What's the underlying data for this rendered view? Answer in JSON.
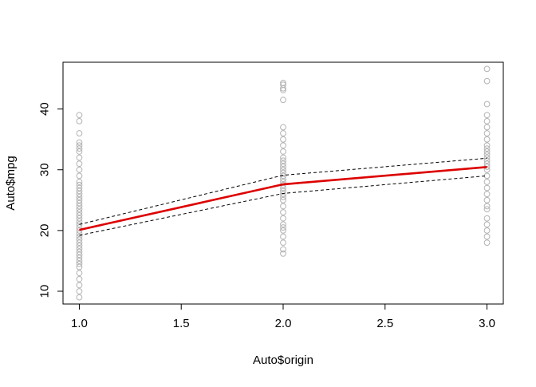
{
  "chart_data": {
    "type": "scatter",
    "title": "",
    "xlabel": "Auto$origin",
    "ylabel": "Auto$mpg",
    "xlim": [
      0.92,
      3.08
    ],
    "ylim": [
      7.9,
      47.7
    ],
    "x_ticks": [
      1.0,
      1.5,
      2.0,
      2.5,
      3.0
    ],
    "x_tick_labels": [
      "1.0",
      "1.5",
      "2.0",
      "2.5",
      "3.0"
    ],
    "y_ticks": [
      10,
      20,
      30,
      40
    ],
    "y_tick_labels": [
      "10",
      "20",
      "30",
      "40"
    ],
    "grid": false,
    "colors": {
      "points": "#b3b3b3",
      "fit": "#dd0000",
      "bands": "#000000",
      "axes": "#000000"
    },
    "series": [
      {
        "kind": "points",
        "style": "open-circle",
        "groups": [
          {
            "x": 1.0,
            "y": [
              9,
              10,
              11,
              12,
              13,
              14,
              14.5,
              15,
              15.5,
              16,
              16.5,
              17,
              17.5,
              18,
              18.5,
              19,
              19.5,
              20,
              20.5,
              21,
              21.5,
              22,
              22.5,
              23,
              23.5,
              24,
              24.5,
              25,
              25.5,
              26,
              26.5,
              27,
              27.5,
              28,
              29,
              30,
              31,
              32,
              33,
              33.5,
              34,
              34.5,
              36,
              38,
              39
            ]
          },
          {
            "x": 2.0,
            "y": [
              16.2,
              16.9,
              18,
              19,
              20,
              20.5,
              21,
              22,
              23,
              24,
              25,
              25.5,
              26,
              26.5,
              27,
              27.5,
              28,
              28.5,
              29,
              29.5,
              30,
              30.5,
              31,
              31.5,
              32,
              33,
              34,
              35,
              36,
              37,
              41.5,
              43.1,
              43.4,
              44,
              44.3
            ]
          },
          {
            "x": 3.0,
            "y": [
              18,
              19,
              20,
              21,
              22,
              23.5,
              24,
              25,
              26,
              27,
              28,
              29,
              30,
              30.5,
              31,
              31.5,
              32,
              32.5,
              33,
              33.5,
              34,
              35,
              36,
              37,
              38,
              39,
              40.8,
              44.6,
              46.6
            ]
          }
        ]
      },
      {
        "kind": "fit",
        "style": "solid",
        "x": [
          1.0,
          2.0,
          3.0
        ],
        "y": [
          20.1,
          27.6,
          30.45
        ]
      },
      {
        "kind": "band-upper",
        "style": "dashed",
        "x": [
          1.0,
          2.0,
          3.0
        ],
        "y": [
          21.0,
          29.1,
          31.9
        ]
      },
      {
        "kind": "band-lower",
        "style": "dashed",
        "x": [
          1.0,
          2.0,
          3.0
        ],
        "y": [
          19.2,
          26.1,
          29.0
        ]
      }
    ]
  }
}
